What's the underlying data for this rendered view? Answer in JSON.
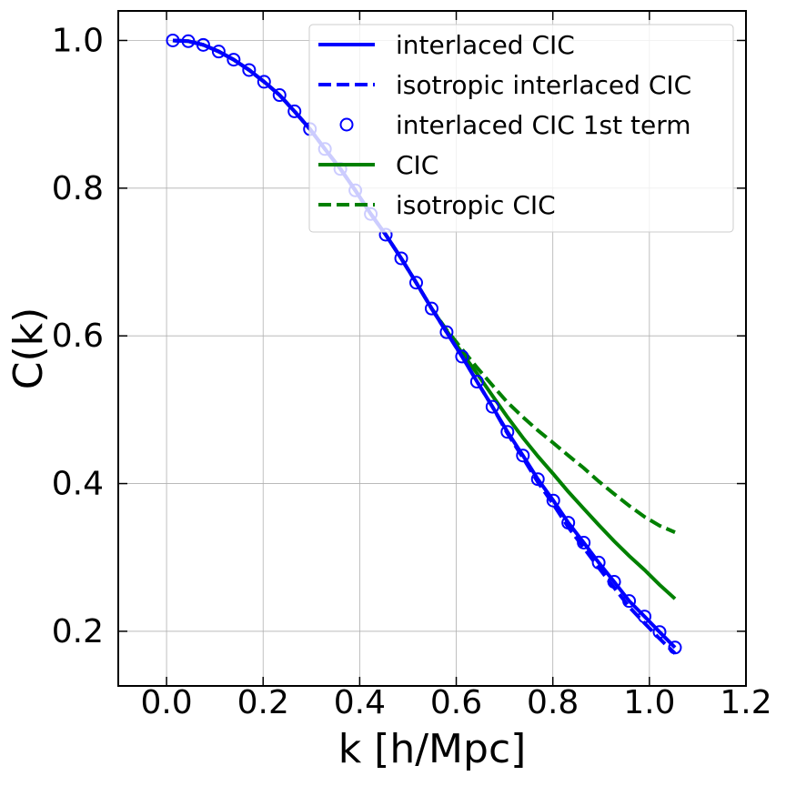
{
  "chart_data": {
    "type": "line",
    "xlabel": "k [h/Mpc]",
    "ylabel": "C(k)",
    "x": [
      0.013,
      0.045,
      0.076,
      0.108,
      0.139,
      0.171,
      0.202,
      0.234,
      0.265,
      0.297,
      0.328,
      0.36,
      0.391,
      0.423,
      0.454,
      0.486,
      0.517,
      0.549,
      0.58,
      0.612,
      0.643,
      0.675,
      0.706,
      0.738,
      0.769,
      0.801,
      0.832,
      0.864,
      0.895,
      0.927,
      0.958,
      0.99,
      1.021,
      1.053
    ],
    "series": [
      {
        "name": "interlaced CIC",
        "color": "#0000ff",
        "style": "solid",
        "values": [
          1.0,
          0.999,
          0.994,
          0.985,
          0.974,
          0.96,
          0.944,
          0.926,
          0.904,
          0.88,
          0.853,
          0.826,
          0.797,
          0.765,
          0.737,
          0.705,
          0.672,
          0.637,
          0.605,
          0.572,
          0.538,
          0.504,
          0.47,
          0.438,
          0.406,
          0.377,
          0.347,
          0.32,
          0.293,
          0.267,
          0.241,
          0.22,
          0.199,
          0.178
        ]
      },
      {
        "name": "isotropic interlaced CIC",
        "color": "#0000ff",
        "style": "dashed",
        "values": [
          1.0,
          0.999,
          0.994,
          0.985,
          0.974,
          0.96,
          0.944,
          0.926,
          0.904,
          0.88,
          0.853,
          0.826,
          0.797,
          0.765,
          0.737,
          0.705,
          0.672,
          0.637,
          0.605,
          0.572,
          0.538,
          0.504,
          0.468,
          0.435,
          0.402,
          0.372,
          0.341,
          0.313,
          0.286,
          0.259,
          0.233,
          0.211,
          0.19,
          0.17
        ]
      },
      {
        "name": "interlaced CIC 1st term",
        "color": "#0000ff",
        "style": "markers",
        "values": [
          1.0,
          0.999,
          0.994,
          0.985,
          0.974,
          0.96,
          0.944,
          0.926,
          0.904,
          0.88,
          0.853,
          0.826,
          0.797,
          0.765,
          0.737,
          0.705,
          0.672,
          0.637,
          0.605,
          0.572,
          0.538,
          0.504,
          0.47,
          0.438,
          0.406,
          0.377,
          0.347,
          0.32,
          0.293,
          0.267,
          0.241,
          0.22,
          0.199,
          0.178
        ]
      },
      {
        "name": "CIC",
        "color": "#008000",
        "style": "solid",
        "values": [
          1.0,
          0.999,
          0.994,
          0.985,
          0.974,
          0.96,
          0.944,
          0.926,
          0.904,
          0.88,
          0.853,
          0.826,
          0.797,
          0.765,
          0.737,
          0.705,
          0.672,
          0.637,
          0.607,
          0.577,
          0.549,
          0.519,
          0.49,
          0.462,
          0.437,
          0.413,
          0.389,
          0.366,
          0.344,
          0.322,
          0.302,
          0.283,
          0.263,
          0.244
        ]
      },
      {
        "name": "isotropic CIC",
        "color": "#008000",
        "style": "dashed",
        "values": [
          1.0,
          0.999,
          0.994,
          0.985,
          0.974,
          0.96,
          0.944,
          0.926,
          0.904,
          0.88,
          0.853,
          0.826,
          0.797,
          0.765,
          0.737,
          0.705,
          0.672,
          0.637,
          0.608,
          0.582,
          0.557,
          0.533,
          0.51,
          0.49,
          0.472,
          0.455,
          0.438,
          0.421,
          0.403,
          0.386,
          0.37,
          0.355,
          0.343,
          0.334
        ]
      }
    ],
    "xlim": [
      -0.1,
      1.2
    ],
    "ylim": [
      0.126,
      1.04
    ],
    "xticks": [
      {
        "value": 0,
        "label": "0.0"
      },
      0.2,
      0.4,
      0.6,
      0.8,
      {
        "value": 1,
        "label": "1.0"
      },
      1.2
    ],
    "yticks": [
      0.2,
      0.4,
      0.6,
      0.8,
      {
        "value": 1,
        "label": "1.0"
      }
    ],
    "grid": true,
    "legend": "upper right"
  }
}
